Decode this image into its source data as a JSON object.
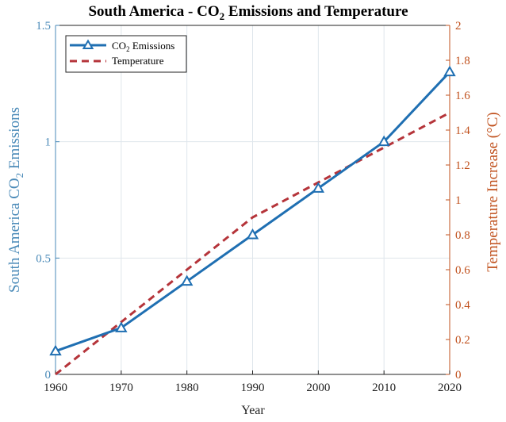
{
  "chart_data": {
    "type": "line",
    "title_main": "South America - CO",
    "title_sub": "2",
    "title_rest": " Emissions and Temperature",
    "xlabel": "Year",
    "ylabel_left_main": "South America CO",
    "ylabel_left_sub": "2",
    "ylabel_left_rest": " Emissions",
    "ylabel_right": "Temperature Increase (°C)",
    "x": [
      1960,
      1970,
      1980,
      1990,
      2000,
      2010,
      2020
    ],
    "x_ticks": [
      "1960",
      "1970",
      "1980",
      "1990",
      "2000",
      "2010",
      "2020"
    ],
    "xlim": [
      1960,
      2020
    ],
    "ylim_left": [
      0,
      1.5
    ],
    "ylim_right": [
      0,
      2
    ],
    "y_left_ticks": [
      {
        "value": 0,
        "label": "0"
      },
      {
        "value": 0.5,
        "label": "0.5"
      },
      {
        "value": 1,
        "label": "1"
      },
      {
        "value": 1.5,
        "label": "1.5"
      }
    ],
    "y_right_ticks": [
      {
        "value": 0,
        "label": "0"
      },
      {
        "value": 0.2,
        "label": "0.2"
      },
      {
        "value": 0.4,
        "label": "0.4"
      },
      {
        "value": 0.6,
        "label": "0.6"
      },
      {
        "value": 0.8,
        "label": "0.8"
      },
      {
        "value": 1,
        "label": "1"
      },
      {
        "value": 1.2,
        "label": "1.2"
      },
      {
        "value": 1.4,
        "label": "1.4"
      },
      {
        "value": 1.6,
        "label": "1.6"
      },
      {
        "value": 1.8,
        "label": "1.8"
      },
      {
        "value": 2,
        "label": "2"
      }
    ],
    "grid": true,
    "legend_position": "top-left",
    "series": [
      {
        "name_main": "CO",
        "name_sub": "2",
        "name_rest": " Emissions",
        "axis": "left",
        "style": "solid line with triangle markers",
        "color": "#1f6fb2",
        "values": [
          0.1,
          0.2,
          0.4,
          0.6,
          0.8,
          1.0,
          1.3
        ]
      },
      {
        "name": "Temperature",
        "axis": "right",
        "style": "dashed line",
        "color": "#b5343a",
        "values": [
          0.0,
          0.3,
          0.6,
          0.9,
          1.1,
          1.3,
          1.5
        ]
      }
    ],
    "colors": {
      "left_axis": "#4a8ab8",
      "right_axis": "#c0501c",
      "grid": "#dfe6ec",
      "frame": "#222222"
    }
  }
}
